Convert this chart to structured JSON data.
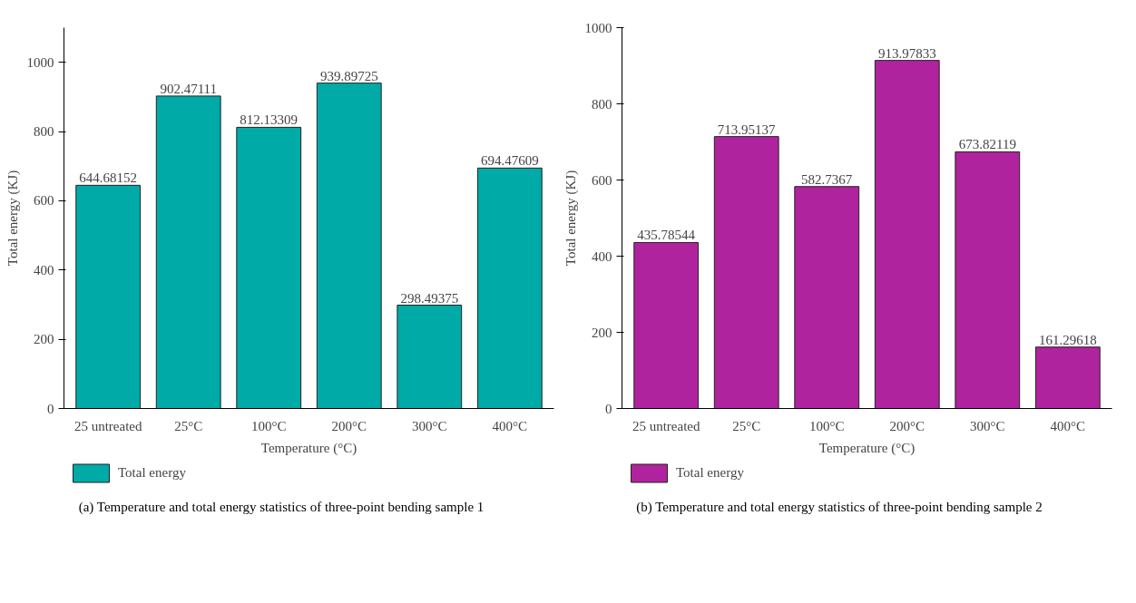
{
  "chart_data": [
    {
      "type": "bar",
      "categories": [
        "25 untreated",
        "25°C",
        "100°C",
        "200°C",
        "300°C",
        "400°C"
      ],
      "series": [
        {
          "name": "Total energy",
          "color": "#00aaa6",
          "values": [
            644.68152,
            902.47111,
            812.13309,
            939.89725,
            298.49375,
            694.47609
          ]
        }
      ],
      "xlabel": "Temperature (°C)",
      "ylabel": "Total energy (KJ)",
      "ylim": [
        0,
        1100
      ],
      "yticks": [
        0,
        200,
        400,
        600,
        800,
        1000
      ],
      "data_labels": true,
      "grid": false,
      "legend": "bottom left",
      "annotations": [
        "(a) Temperature and total energy statistics of three-point bending sample 1"
      ]
    },
    {
      "type": "bar",
      "categories": [
        "25 untreated",
        "25°C",
        "100°C",
        "200°C",
        "300°C",
        "400°C"
      ],
      "series": [
        {
          "name": "Total energy",
          "color": "#b0239e",
          "values": [
            435.78544,
            713.95137,
            582.7367,
            913.97833,
            673.82119,
            161.29618
          ]
        }
      ],
      "xlabel": "Temperature (°C)",
      "ylabel": "Total energy (KJ)",
      "ylim": [
        0,
        1000
      ],
      "yticks": [
        0,
        200,
        400,
        600,
        800,
        1000
      ],
      "data_labels": true,
      "grid": false,
      "legend": "bottom left",
      "annotations": [
        "(b) Temperature and total energy statistics of three-point bending sample 2"
      ]
    }
  ]
}
